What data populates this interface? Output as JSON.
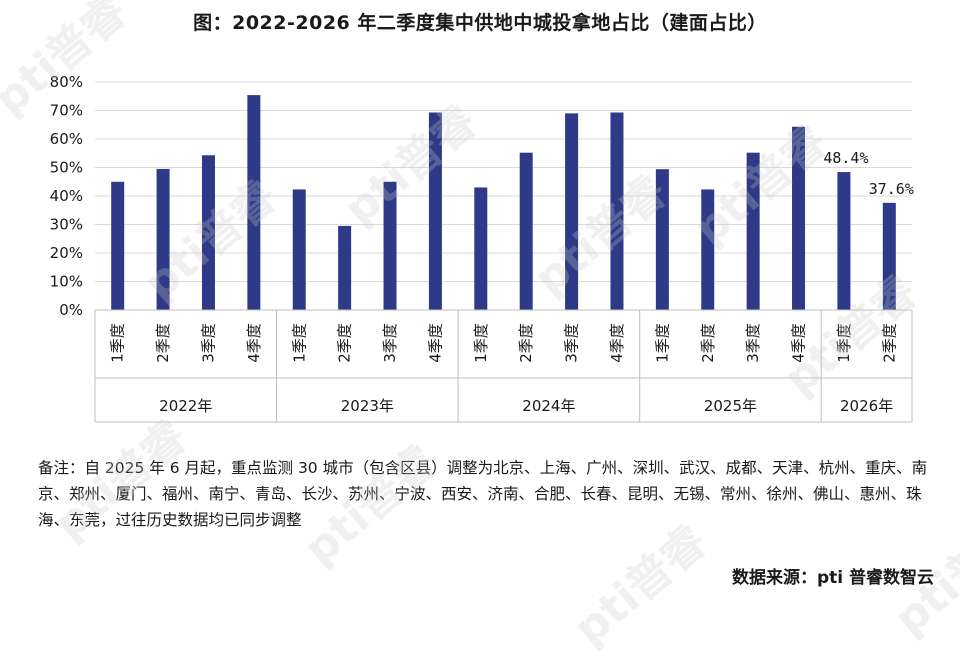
{
  "chart_data": {
    "type": "bar",
    "title": "图：2022-2026 年二季度集中供地中城投拿地占比（建面占比）",
    "groups": [
      {
        "year": "2022年",
        "quarters": [
          "1季度",
          "2季度",
          "3季度",
          "4季度"
        ],
        "values": [
          45.0,
          49.5,
          54.3,
          75.4
        ]
      },
      {
        "year": "2023年",
        "quarters": [
          "1季度",
          "2季度",
          "3季度",
          "4季度"
        ],
        "values": [
          42.3,
          29.5,
          45.0,
          69.3
        ]
      },
      {
        "year": "2024年",
        "quarters": [
          "1季度",
          "2季度",
          "3季度",
          "4季度"
        ],
        "values": [
          43.0,
          55.2,
          69.0,
          69.3
        ]
      },
      {
        "year": "2025年",
        "quarters": [
          "1季度",
          "2季度",
          "3季度",
          "4季度"
        ],
        "values": [
          49.4,
          42.3,
          55.2,
          64.3
        ]
      },
      {
        "year": "2026年",
        "quarters": [
          "1季度",
          "2季度"
        ],
        "values": [
          48.4,
          37.6
        ]
      }
    ],
    "data_labels": {
      "2026年-1季度": "48.4%",
      "2026年-2季度": "37.6%"
    },
    "y_ticks": [
      "0%",
      "10%",
      "20%",
      "30%",
      "40%",
      "50%",
      "60%",
      "70%",
      "80%"
    ],
    "ylim": [
      0,
      80
    ],
    "grid": true,
    "bar_color": "#2e3a87"
  },
  "note": "备注：自 2025 年 6 月起，重点监测 30 城市（包含区县）调整为北京、上海、广州、深圳、武汉、成都、天津、杭州、重庆、南京、郑州、厦门、福州、南宁、青岛、长沙、苏州、宁波、西安、济南、合肥、长春、昆明、无锡、常州、徐州、佛山、惠州、珠海、东莞，过往历史数据均已同步调整",
  "source": "数据来源：pti 普睿数智云",
  "watermark": "pti普睿"
}
